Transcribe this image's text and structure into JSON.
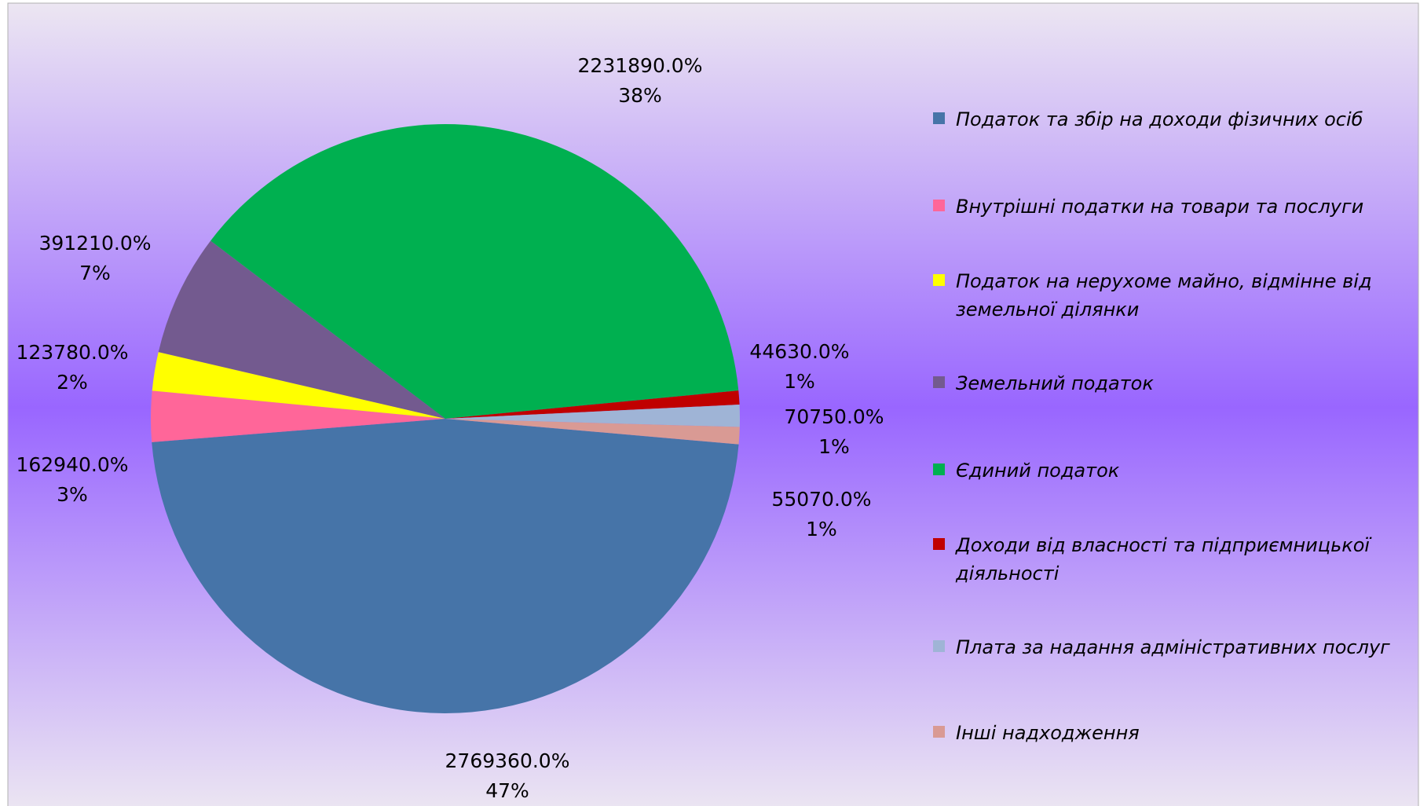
{
  "chart_data": {
    "type": "pie",
    "categories": [
      "Податок та збір на доходи фізичних осіб",
      "Внутрішні податки на товари та послуги",
      "Податок на нерухоме майно, відмінне від земельної ділянки",
      "Земельний податок",
      "Єдиний податок",
      "Доходи від власності та підприємницької діяльності",
      "Плата за надання адміністративних послуг",
      "Інші надходження"
    ],
    "values": [
      2769360,
      162940,
      123780,
      391210,
      2231890,
      44630,
      70750,
      55070
    ],
    "value_labels": [
      "2769360.0%",
      "162940.0%",
      "123780.0%",
      "391210.0%",
      "2231890.0%",
      "44630.0%",
      "70750.0%",
      "55070.0%"
    ],
    "percent_labels": [
      "47%",
      "3%",
      "2%",
      "7%",
      "38%",
      "1%",
      "1%",
      "1%"
    ],
    "colors": [
      "#4674a8",
      "#ff6699",
      "#ffff00",
      "#735a8f",
      "#00b050",
      "#c00000",
      "#9fb4d6",
      "#d99a94"
    ],
    "legend": "right"
  }
}
